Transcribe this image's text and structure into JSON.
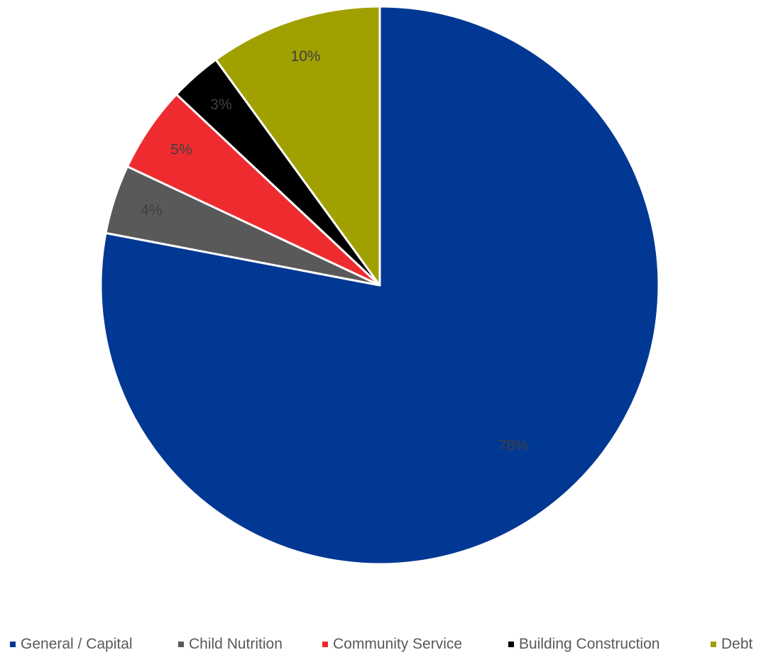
{
  "chart_data": {
    "type": "pie",
    "start_angle_deg": 0,
    "direction": "clockwise",
    "legend_position": "bottom",
    "slices": [
      {
        "label": "General / Capital",
        "value": 78,
        "display": "78%",
        "color": "#003893",
        "label_color": "#404040"
      },
      {
        "label": "Child Nutrition",
        "value": 4,
        "display": "4%",
        "color": "#595959",
        "label_color": "#404040"
      },
      {
        "label": "Community Service",
        "value": 5,
        "display": "5%",
        "color": "#ee2c2f",
        "label_color": "#404040"
      },
      {
        "label": "Building Construction",
        "value": 3,
        "display": "3%",
        "color": "#000000",
        "label_color": "#404040"
      },
      {
        "label": "Debt",
        "value": 10,
        "display": "10%",
        "color": "#a0a000",
        "label_color": "#404040"
      }
    ]
  }
}
